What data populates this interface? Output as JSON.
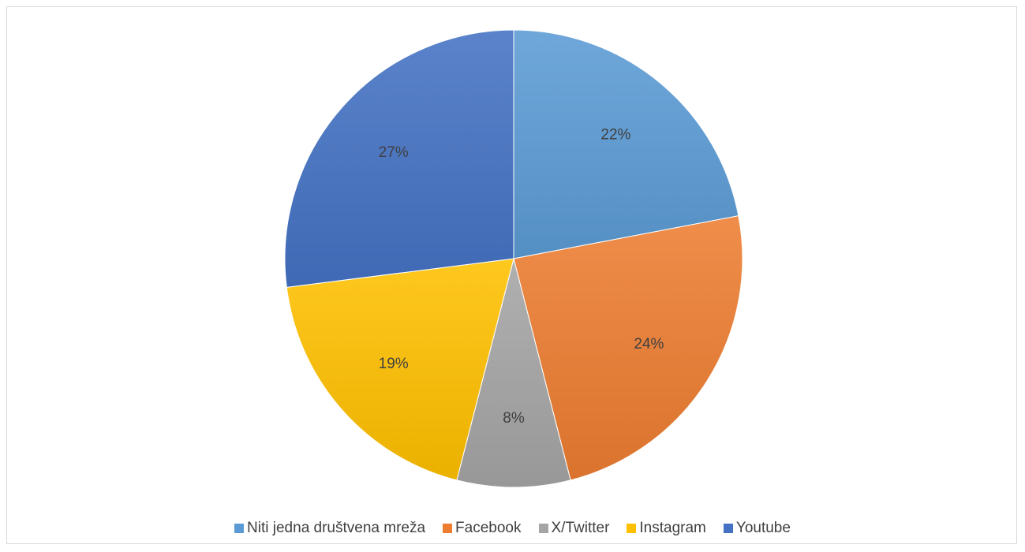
{
  "chart_data": {
    "type": "pie",
    "title": "",
    "series": [
      {
        "labels": [
          "Niti jedna društvena mreža",
          "Facebook",
          "X/Twitter",
          "Instagram",
          "Youtube"
        ],
        "values": [
          22,
          24,
          8,
          19,
          27
        ],
        "data_labels": [
          "22%",
          "24%",
          "8%",
          "19%",
          "27%"
        ],
        "colors": [
          "#5b9bd5",
          "#ed7d31",
          "#a5a5a5",
          "#ffc000",
          "#4472c4"
        ]
      }
    ],
    "legend": {
      "placement": "bottom",
      "entries": [
        "Niti jedna društvena mreža",
        "Facebook",
        "X/Twitter",
        "Instagram",
        "Youtube"
      ]
    }
  }
}
